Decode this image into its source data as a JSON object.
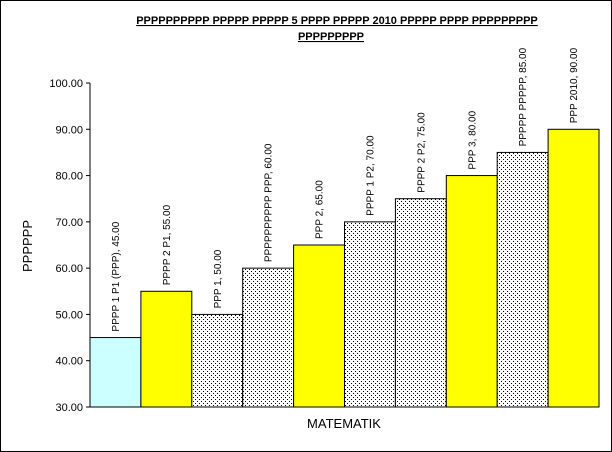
{
  "chart_data": {
    "type": "bar",
    "title_lines": [
      "PPPPPPPPPP PPPPP PPPPP 5 PPPP PPPPP 2010 PPPPP PPPP PPPPPPPPP",
      "PPPPPPPPP"
    ],
    "xlabel": "MATEMATIK",
    "ylabel": "PPPPPP",
    "ylim": [
      30,
      100
    ],
    "y_ticks": [
      30,
      40,
      50,
      60,
      70,
      80,
      90,
      100
    ],
    "y_tick_labels": [
      "30.00",
      "40.00",
      "50.00",
      "60.00",
      "70.00",
      "80.00",
      "90.00",
      "100.00"
    ],
    "grid": false,
    "legend": "none",
    "bars": [
      {
        "label": "PPPP 1 P1 (PPP), 45.00",
        "value": 45,
        "fill": "light-cyan"
      },
      {
        "label": "PPPP 2 P1, 55.00",
        "value": 55,
        "fill": "yellow"
      },
      {
        "label": "PPP 1, 50.00",
        "value": 50,
        "fill": "dotted"
      },
      {
        "label": "PPPPPPPPPP PPP, 60.00",
        "value": 60,
        "fill": "dotted"
      },
      {
        "label": "PPP 2, 65.00",
        "value": 65,
        "fill": "yellow"
      },
      {
        "label": "PPPP 1 P2, 70.00",
        "value": 70,
        "fill": "dotted"
      },
      {
        "label": "PPPP 2 P2, 75.00",
        "value": 75,
        "fill": "dotted"
      },
      {
        "label": "PPP 3, 80.00",
        "value": 80,
        "fill": "yellow"
      },
      {
        "label": "PPPPP PPPPP, 85.00",
        "value": 85,
        "fill": "dotted"
      },
      {
        "label": "PPP 2010, 90.00",
        "value": 90,
        "fill": "yellow"
      }
    ],
    "colors": {
      "yellow": "#ffff00",
      "light-cyan": "#ccffff",
      "dotted_background": "#ffffff",
      "dotted_dots": "#000000",
      "bar_outline": "#000000"
    }
  }
}
